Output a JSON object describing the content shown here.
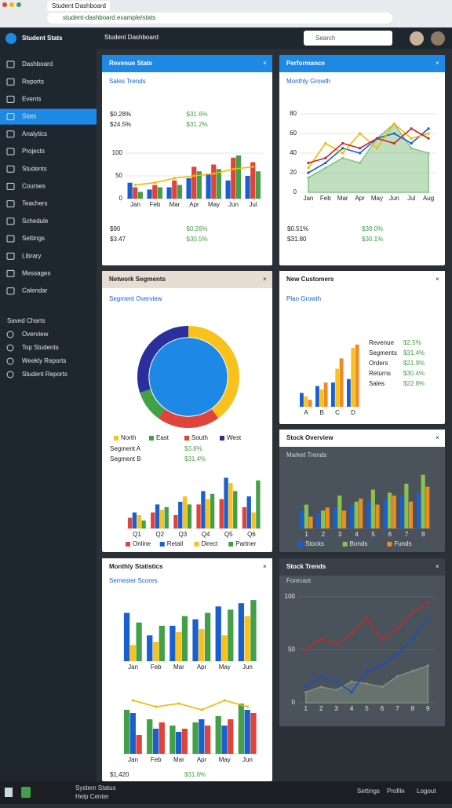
{
  "browser": {
    "tab": "Student Dashboard",
    "url": "student-dashboard.example/stats"
  },
  "app": {
    "name": "Student Stats",
    "page_title": "Student Dashboard",
    "search": "Search"
  },
  "sidebar": {
    "active": 3,
    "items": [
      "Dashboard",
      "Reports",
      "Events",
      "Stats",
      "Analytics",
      "Projects",
      "Students",
      "Courses",
      "Teachers",
      "Schedule",
      "Settings",
      "Library",
      "Messages",
      "Calendar"
    ],
    "section": "Saved Charts",
    "sub": [
      "Overview",
      "Top Students",
      "Weekly Reports",
      "Student Reports"
    ]
  },
  "panels": [
    {
      "title": "Revenue Stats",
      "header_color": "#1e88e5",
      "theme": "light",
      "subtitle": "Sales Trends",
      "stats": [
        [
          "$0.28%",
          "$31.6%",
          "$24.5%",
          "$31.2%"
        ],
        [
          "$90",
          "$0.26%",
          "$3.47",
          "$30.5%"
        ]
      ],
      "charts": [
        {
          "type": "bar",
          "categories": [
            "Jan",
            "Feb",
            "Mar",
            "Apr",
            "May",
            "Jun",
            "Jul"
          ],
          "ylim": [
            0,
            100
          ],
          "yticks": [
            0,
            50,
            100
          ],
          "legend": false,
          "series": [
            {
              "name": "Sales",
              "color": "#1a5fd0",
              "values": [
                35,
                20,
                25,
                45,
                55,
                40,
                50
              ]
            },
            {
              "name": "Costs",
              "color": "#e0433a",
              "values": [
                25,
                30,
                40,
                70,
                75,
                90,
                80
              ]
            },
            {
              "name": "Profit",
              "color": "#43a047",
              "values": [
                15,
                25,
                30,
                60,
                65,
                95,
                60
              ]
            },
            {
              "name": "Trend",
              "color": "#f5b800",
              "type": "line",
              "values": [
                30,
                35,
                45,
                50,
                55,
                65,
                70
              ]
            }
          ]
        }
      ]
    },
    {
      "title": "Performance",
      "header_color": "#1e88e5",
      "theme": "light",
      "subtitle": "Monthly Growth",
      "stats": [
        [
          "$0.51%",
          "$38.0%",
          "$31.80",
          "$30.1%"
        ]
      ],
      "charts": [
        {
          "type": "line",
          "categories": [
            "Jan",
            "Feb",
            "Mar",
            "Apr",
            "May",
            "Jun",
            "Jul",
            "Aug"
          ],
          "ylim": [
            0,
            80
          ],
          "yticks": [
            0,
            20,
            40,
            60,
            80
          ],
          "legend": false,
          "series": [
            {
              "name": "Growth",
              "color": "#8bc48a",
              "area": true,
              "values": [
                15,
                25,
                35,
                30,
                55,
                70,
                45,
                40
              ]
            },
            {
              "name": "Users",
              "color": "#1a5fd0",
              "values": [
                20,
                30,
                45,
                40,
                55,
                60,
                50,
                65
              ]
            },
            {
              "name": "Visits",
              "color": "#f5b800",
              "values": [
                25,
                50,
                40,
                60,
                45,
                70,
                55,
                60
              ]
            },
            {
              "name": "Orders",
              "color": "#c62828",
              "values": [
                30,
                35,
                50,
                45,
                55,
                50,
                65,
                55
              ]
            }
          ]
        }
      ]
    },
    {
      "title": "Network Segments",
      "header_color": "#e8ddd3",
      "theme": "light",
      "subtitle": "Segment Overview",
      "stats": [
        [
          "Segment A",
          "$3.8%",
          "Segment B",
          "$31.4%"
        ]
      ],
      "charts": [
        {
          "type": "donut",
          "categories": [
            "North",
            "South",
            "East",
            "West"
          ],
          "values": [
            40,
            20,
            10,
            30
          ],
          "colors": [
            "#f9c11b",
            "#e0433a",
            "#43a047",
            "#2b2f9e"
          ],
          "center_color": "#1e88e5"
        },
        {
          "type": "bar",
          "categories": [
            "Q1",
            "Q2",
            "Q3",
            "Q4",
            "Q5",
            "Q6"
          ],
          "ylim": [
            0,
            100
          ],
          "legend": true,
          "series": [
            {
              "name": "Online",
              "color": "#e0433a",
              "values": [
                20,
                30,
                25,
                45,
                55,
                40
              ]
            },
            {
              "name": "Retail",
              "color": "#1a5fd0",
              "values": [
                30,
                45,
                50,
                70,
                95,
                60
              ]
            },
            {
              "name": "Direct",
              "color": "#f9c11b",
              "values": [
                25,
                35,
                60,
                55,
                85,
                30
              ]
            },
            {
              "name": "Partner",
              "color": "#43a047",
              "values": [
                15,
                40,
                45,
                65,
                70,
                90
              ]
            }
          ]
        }
      ]
    },
    {
      "title": "New Customers",
      "header_color": "#ffffff",
      "theme": "light",
      "subtitle": "Plan Growth",
      "stats": [
        [
          "Revenue",
          "$2.5%",
          "Segments",
          "$31.4%",
          "Orders",
          "$21.9%",
          "Returns",
          "$30.4%",
          "Sales",
          "$22.8%"
        ]
      ],
      "charts": [
        {
          "type": "bar",
          "categories": [
            "A",
            "B",
            "C",
            "D"
          ],
          "ylim": [
            0,
            100
          ],
          "legend": false,
          "series": [
            {
              "name": "New",
              "color": "#1a5fd0",
              "values": [
                20,
                30,
                35,
                40
              ]
            },
            {
              "name": "Returning",
              "color": "#f9c11b",
              "values": [
                15,
                25,
                55,
                85
              ]
            },
            {
              "name": "Lost",
              "color": "#f08a24",
              "values": [
                10,
                35,
                70,
                90
              ]
            }
          ]
        }
      ]
    },
    {
      "title": "Stock Overview",
      "header_color": "#ffffff",
      "theme": "dark",
      "subtitle": "Market Trends",
      "stats": [],
      "charts": [
        {
          "type": "bar",
          "categories": [
            "1",
            "2",
            "3",
            "4",
            "5",
            "6",
            "7",
            "8"
          ],
          "ylim": [
            0,
            100
          ],
          "legend": true,
          "series": [
            {
              "name": "Stocks",
              "color": "#1a5fd0",
              "values": [
                30,
                25,
                35,
                40,
                45,
                50,
                55,
                60
              ]
            },
            {
              "name": "Bonds",
              "color": "#8bc34a",
              "values": [
                40,
                30,
                55,
                45,
                65,
                60,
                75,
                90
              ]
            },
            {
              "name": "Funds",
              "color": "#f08a24",
              "values": [
                20,
                35,
                30,
                50,
                40,
                55,
                45,
                70
              ]
            }
          ]
        }
      ]
    },
    {
      "title": "Monthly Statistics",
      "header_color": "#ffffff",
      "theme": "light",
      "subtitle": "Semester Scores",
      "stats": [
        [
          "$1,420",
          "$31.6%"
        ]
      ],
      "charts": [
        {
          "type": "bar",
          "categories": [
            "Jan",
            "Feb",
            "Mar",
            "Apr",
            "May",
            "Jun"
          ],
          "ylim": [
            0,
            100
          ],
          "legend": false,
          "series": [
            {
              "name": "Math",
              "color": "#1a5fd0",
              "values": [
                75,
                40,
                55,
                65,
                85,
                90
              ]
            },
            {
              "name": "Science",
              "color": "#f9c11b",
              "values": [
                25,
                30,
                45,
                50,
                40,
                70
              ]
            },
            {
              "name": "Art",
              "color": "#43a047",
              "values": [
                60,
                55,
                70,
                75,
                80,
                95
              ]
            }
          ]
        },
        {
          "type": "bar",
          "categories": [
            "Jan",
            "Feb",
            "Mar",
            "Apr",
            "May",
            "Jun"
          ],
          "ylim": [
            0,
            100
          ],
          "legend": false,
          "series": [
            {
              "name": "Exams",
              "color": "#43a047",
              "values": [
                70,
                55,
                45,
                50,
                60,
                80
              ]
            },
            {
              "name": "Quizzes",
              "color": "#1a5fd0",
              "values": [
                65,
                40,
                35,
                55,
                45,
                70
              ]
            },
            {
              "name": "Labs",
              "color": "#e0433a",
              "values": [
                30,
                50,
                40,
                45,
                55,
                65
              ]
            },
            {
              "name": "Average",
              "color": "#f5b800",
              "type": "line",
              "values": [
                85,
                75,
                80,
                70,
                85,
                75
              ]
            }
          ]
        }
      ]
    },
    {
      "title": "Stock Trends",
      "header_color": "#3a4048",
      "theme": "dark",
      "subtitle": "Forecast",
      "stats": [],
      "charts": [
        {
          "type": "line",
          "categories": [
            "1",
            "2",
            "3",
            "4",
            "5",
            "6",
            "7",
            "8",
            "9"
          ],
          "ylim": [
            0,
            100
          ],
          "yticks": [
            0,
            50,
            100
          ],
          "legend": false,
          "series": [
            {
              "name": "Volume",
              "color": "#7f8c7f",
              "area": true,
              "values": [
                10,
                15,
                12,
                20,
                18,
                15,
                25,
                30,
                35
              ]
            },
            {
              "name": "Price",
              "color": "#c62828",
              "values": [
                50,
                60,
                55,
                65,
                80,
                60,
                70,
                85,
                95
              ]
            },
            {
              "name": "Index",
              "color": "#1a4fc0",
              "values": [
                15,
                25,
                20,
                10,
                30,
                35,
                45,
                60,
                80
              ]
            }
          ]
        }
      ]
    }
  ],
  "taskbar": {
    "status": "System Status",
    "help": "Help Center",
    "items": [
      "Settings",
      "Profile",
      "Logout"
    ]
  }
}
